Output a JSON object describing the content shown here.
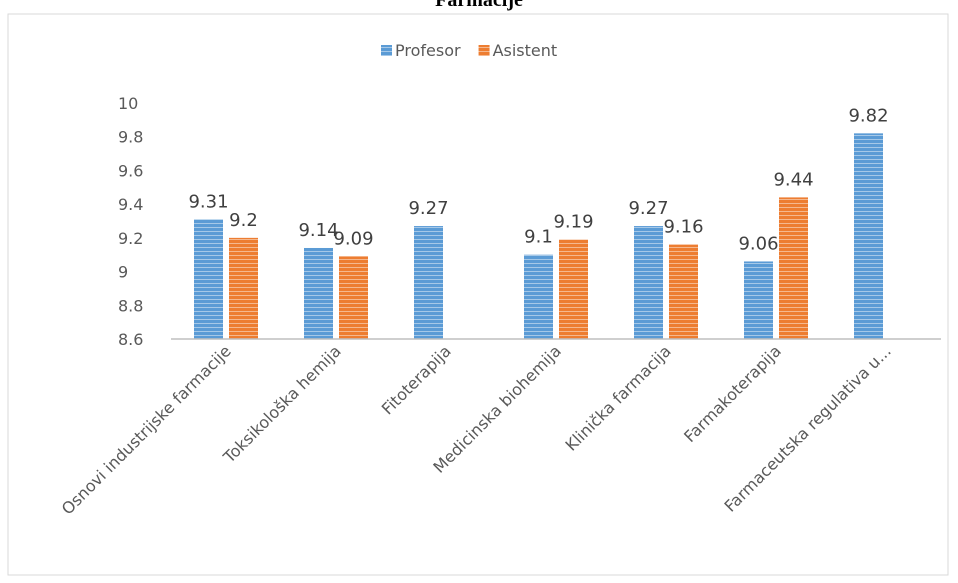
{
  "chart_data": {
    "type": "bar",
    "title": "Farmacije",
    "categories": [
      "Osnovi industrijske farmacije",
      "Toksikološka hemija",
      "Fitoterapija",
      "Medicinska biohemija",
      "Klinička farmacija",
      "Farmakoterapija",
      "Farmaceutska regulativa u..."
    ],
    "series": [
      {
        "name": "Profesor",
        "color": "#5b9bd5",
        "values": [
          9.31,
          9.14,
          9.27,
          9.1,
          9.27,
          9.06,
          9.82
        ]
      },
      {
        "name": "Asistent",
        "color": "#ed7d31",
        "values": [
          9.2,
          9.09,
          null,
          9.19,
          9.16,
          9.44,
          null
        ]
      }
    ],
    "ylim": [
      8.6,
      10
    ],
    "yticks": [
      8.6,
      8.8,
      9,
      9.2,
      9.4,
      9.6,
      9.8,
      10
    ],
    "grid": false,
    "legend": "top"
  }
}
